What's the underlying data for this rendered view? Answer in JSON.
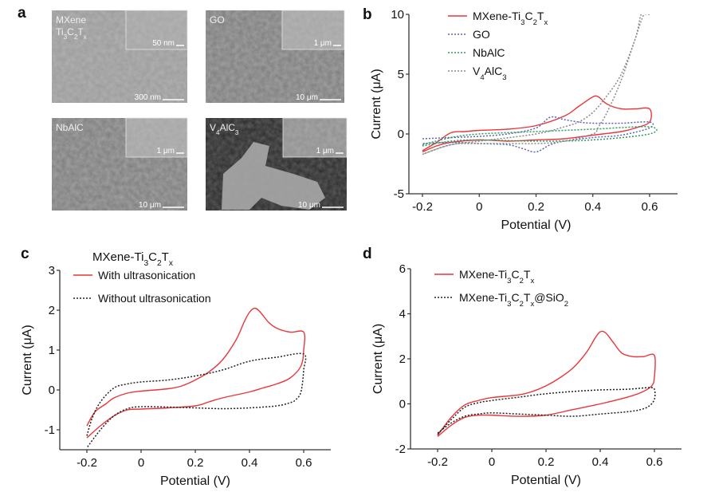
{
  "panel_labels": {
    "a": "a",
    "b": "b",
    "c": "c",
    "d": "d"
  },
  "sem_images": [
    {
      "id": "mxene",
      "label_line1": "MXene",
      "label_line2": "Ti3C2Tx",
      "inset_scale": "50 nm",
      "main_scale": "300 nm",
      "tone": "light"
    },
    {
      "id": "go",
      "label_line1": "GO",
      "label_line2": "",
      "inset_scale": "1 μm",
      "main_scale": "10 μm",
      "tone": "mid"
    },
    {
      "id": "nbalc",
      "label_line1": "NbAlC",
      "label_line2": "",
      "inset_scale": "1 μm",
      "main_scale": "10 μm",
      "tone": "mid"
    },
    {
      "id": "v4alc3",
      "label_line1": "V4AlC3",
      "label_line2": "",
      "inset_scale": "1 μm",
      "main_scale": "10 μm",
      "tone": "dark"
    }
  ],
  "chart_data": [
    {
      "panel": "b",
      "type": "line",
      "title": "",
      "xlabel": "Potential (V)",
      "ylabel": "Current (μA)",
      "xlim": [
        -0.25,
        0.7
      ],
      "ylim": [
        -5,
        10
      ],
      "xticks": [
        -0.2,
        0,
        0.2,
        0.4,
        0.6
      ],
      "xtick_labels": [
        "-0.2",
        "0",
        "0.2",
        "0.4",
        "0.6"
      ],
      "yticks": [
        -5,
        0,
        5,
        10
      ],
      "ytick_labels": [
        "-5",
        "0",
        "5",
        "10"
      ],
      "legend": "top-left",
      "series": [
        {
          "name": "MXene-Ti3C2Tx",
          "color": "#e8363a",
          "style": "solid",
          "x": [
            -0.2,
            -0.15,
            -0.1,
            -0.05,
            0,
            0.1,
            0.2,
            0.3,
            0.35,
            0.4,
            0.42,
            0.45,
            0.5,
            0.55,
            0.6,
            0.6,
            0.55,
            0.5,
            0.4,
            0.3,
            0.2,
            0.1,
            0,
            -0.1,
            -0.15,
            -0.2
          ],
          "y": [
            -1.4,
            -0.7,
            0.1,
            0.2,
            0.3,
            0.4,
            0.7,
            1.5,
            2.3,
            3.1,
            3.1,
            2.5,
            2.1,
            2.1,
            2.1,
            1.0,
            0.5,
            0.2,
            -0.1,
            -0.4,
            -0.5,
            -0.6,
            -0.5,
            -0.7,
            -1.0,
            -1.5
          ]
        },
        {
          "name": "GO",
          "color": "#5b62b8",
          "style": "dotted",
          "x": [
            -0.2,
            -0.1,
            0,
            0.1,
            0.2,
            0.25,
            0.3,
            0.35,
            0.4,
            0.5,
            0.6,
            0.6,
            0.5,
            0.4,
            0.3,
            0.25,
            0.2,
            0.15,
            0.1,
            0,
            -0.1,
            -0.2
          ],
          "y": [
            -0.4,
            -0.3,
            -0.2,
            0.0,
            0.5,
            1.4,
            1.2,
            1.0,
            0.9,
            0.9,
            1.0,
            0.5,
            -0.1,
            -0.3,
            -0.6,
            -0.9,
            -1.5,
            -1.2,
            -0.9,
            -0.8,
            -0.7,
            -0.8
          ]
        },
        {
          "name": "NbAlC",
          "color": "#2e9b5a",
          "style": "dotted",
          "x": [
            -0.2,
            -0.1,
            0,
            0.2,
            0.4,
            0.6,
            0.6,
            0.4,
            0.2,
            0,
            -0.1,
            -0.2
          ],
          "y": [
            -0.9,
            -0.3,
            0.0,
            0.2,
            0.4,
            0.6,
            0.0,
            -0.5,
            -0.6,
            -0.5,
            -0.6,
            -1.0
          ]
        },
        {
          "name": "V4AlC3",
          "color": "#8a8a8a",
          "style": "dotted",
          "x": [
            -0.2,
            -0.1,
            0,
            0.2,
            0.3,
            0.35,
            0.4,
            0.45,
            0.5,
            0.55,
            0.57,
            0.59,
            0.6,
            0.58,
            0.55,
            0.5,
            0.45,
            0.42,
            0.4,
            0.3,
            0.2,
            0,
            -0.1,
            -0.2
          ],
          "y": [
            -1.7,
            -0.9,
            -0.6,
            0.0,
            0.6,
            1.0,
            1.8,
            3.2,
            5.0,
            8.0,
            10.0,
            10.0,
            10.0,
            10.0,
            8.0,
            4.5,
            1.8,
            0.6,
            0.0,
            -0.6,
            -0.8,
            -0.8,
            -0.9,
            -1.7
          ]
        }
      ]
    },
    {
      "panel": "c",
      "type": "line",
      "title": "MXene-Ti3C2Tx",
      "xlabel": "Potential (V)",
      "ylabel": "Current (μA)",
      "xlim": [
        -0.25,
        0.7
      ],
      "ylim": [
        -1.5,
        3
      ],
      "xticks": [
        -0.2,
        0,
        0.2,
        0.4,
        0.6
      ],
      "xtick_labels": [
        "-0.2",
        "0",
        "0.2",
        "0.4",
        "0.6"
      ],
      "yticks": [
        -1,
        0,
        1,
        2,
        3
      ],
      "ytick_labels": [
        "-1",
        "0",
        "1",
        "2",
        "3"
      ],
      "legend": "top-left",
      "series": [
        {
          "name": "With ultrasonication",
          "color": "#e8363a",
          "style": "solid",
          "x": [
            -0.2,
            -0.17,
            -0.13,
            -0.1,
            -0.05,
            0,
            0.1,
            0.15,
            0.2,
            0.25,
            0.3,
            0.35,
            0.38,
            0.4,
            0.42,
            0.44,
            0.47,
            0.5,
            0.55,
            0.6,
            0.6,
            0.59,
            0.55,
            0.5,
            0.45,
            0.4,
            0.3,
            0.25,
            0.2,
            0.1,
            0,
            -0.05,
            -0.1,
            -0.15,
            -0.2
          ],
          "y": [
            -0.9,
            -0.55,
            -0.35,
            -0.2,
            -0.08,
            -0.03,
            0.03,
            0.1,
            0.25,
            0.45,
            0.75,
            1.25,
            1.7,
            1.95,
            2.05,
            1.95,
            1.7,
            1.55,
            1.45,
            1.45,
            1.0,
            0.6,
            0.3,
            0.15,
            0.05,
            -0.05,
            -0.2,
            -0.3,
            -0.4,
            -0.45,
            -0.48,
            -0.5,
            -0.65,
            -0.9,
            -1.2
          ]
        },
        {
          "name": "Without ultrasonication",
          "color": "#222222",
          "style": "dotted",
          "x": [
            -0.2,
            -0.18,
            -0.15,
            -0.1,
            -0.05,
            0,
            0.1,
            0.2,
            0.3,
            0.4,
            0.5,
            0.6,
            0.6,
            0.59,
            0.57,
            0.55,
            0.5,
            0.4,
            0.3,
            0.2,
            0.1,
            0,
            -0.05,
            -0.1,
            -0.15,
            -0.2
          ],
          "y": [
            -1.15,
            -0.7,
            -0.3,
            0.05,
            0.15,
            0.2,
            0.25,
            0.35,
            0.5,
            0.72,
            0.82,
            0.9,
            0.5,
            -0.05,
            -0.25,
            -0.32,
            -0.4,
            -0.45,
            -0.47,
            -0.45,
            -0.43,
            -0.42,
            -0.47,
            -0.65,
            -1.0,
            -1.45
          ]
        }
      ]
    },
    {
      "panel": "d",
      "type": "line",
      "title": "",
      "xlabel": "Potential (V)",
      "ylabel": "Current (μA)",
      "xlim": [
        -0.3,
        0.7
      ],
      "ylim": [
        -2,
        6
      ],
      "xticks": [
        -0.2,
        0,
        0.2,
        0.4,
        0.6
      ],
      "xtick_labels": [
        "-0.2",
        "0",
        "0.2",
        "0.4",
        "0.6"
      ],
      "yticks": [
        -2,
        0,
        2,
        4,
        6
      ],
      "ytick_labels": [
        "-2",
        "0",
        "2",
        "4",
        "6"
      ],
      "legend": "top-left",
      "series": [
        {
          "name": "MXene-Ti3C2Tx",
          "color": "#e8363a",
          "style": "solid",
          "x": [
            -0.2,
            -0.15,
            -0.1,
            -0.05,
            0,
            0.1,
            0.15,
            0.2,
            0.25,
            0.3,
            0.35,
            0.38,
            0.4,
            0.42,
            0.45,
            0.48,
            0.52,
            0.56,
            0.6,
            0.6,
            0.59,
            0.55,
            0.5,
            0.4,
            0.3,
            0.2,
            0.1,
            0,
            -0.05,
            -0.1,
            -0.15,
            -0.2
          ],
          "y": [
            -1.4,
            -0.6,
            -0.05,
            0.15,
            0.28,
            0.4,
            0.55,
            0.8,
            1.15,
            1.6,
            2.3,
            2.9,
            3.2,
            3.15,
            2.7,
            2.25,
            2.1,
            2.1,
            2.15,
            1.2,
            0.8,
            0.5,
            0.3,
            0.0,
            -0.25,
            -0.5,
            -0.55,
            -0.5,
            -0.5,
            -0.6,
            -0.95,
            -1.45
          ]
        },
        {
          "name": "MXene-Ti3C2Tx@SiO2",
          "color": "#222222",
          "style": "dotted",
          "x": [
            -0.2,
            -0.15,
            -0.1,
            -0.05,
            0,
            0.1,
            0.2,
            0.3,
            0.4,
            0.5,
            0.58,
            0.6,
            0.6,
            0.58,
            0.55,
            0.5,
            0.4,
            0.3,
            0.2,
            0.1,
            0,
            -0.05,
            -0.1,
            -0.15,
            -0.2
          ],
          "y": [
            -1.35,
            -0.7,
            -0.15,
            0.05,
            0.15,
            0.3,
            0.45,
            0.55,
            0.62,
            0.65,
            0.72,
            0.65,
            0.2,
            -0.1,
            -0.25,
            -0.35,
            -0.45,
            -0.55,
            -0.5,
            -0.45,
            -0.4,
            -0.45,
            -0.55,
            -0.85,
            -1.3
          ]
        }
      ]
    }
  ]
}
